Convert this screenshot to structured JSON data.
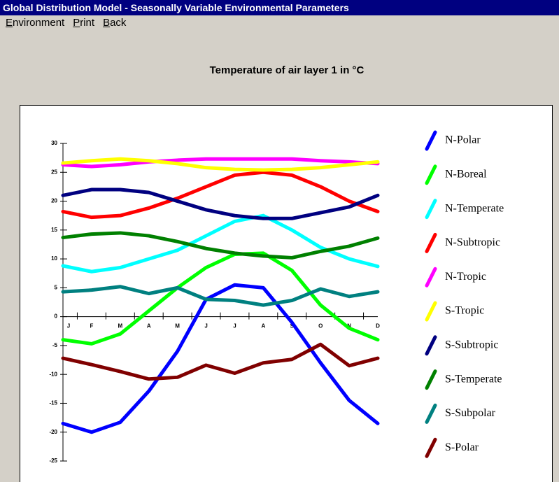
{
  "window": {
    "title": "Global Distribution Model - Seasonally Variable Environmental Parameters"
  },
  "menu": [
    "Environment",
    "Print",
    "Back"
  ],
  "chart_data": {
    "type": "line",
    "title": "Temperature of air layer 1 in °C",
    "categories": [
      "J",
      "F",
      "M",
      "A",
      "M",
      "J",
      "J",
      "A",
      "S",
      "O",
      "N",
      "D"
    ],
    "ylim": [
      -25,
      30
    ],
    "yticks": [
      30,
      25,
      20,
      15,
      10,
      5,
      0,
      -5,
      -10,
      -15,
      -20,
      -25
    ],
    "series": [
      {
        "name": "N-Polar",
        "color": "#0000ff",
        "values": [
          -18.5,
          -20,
          -18.3,
          -12.9,
          -6,
          3,
          5.5,
          5,
          -1,
          -8,
          -14.5,
          -18.5
        ]
      },
      {
        "name": "N-Boreal",
        "color": "#00ff00",
        "values": [
          -4,
          -4.7,
          -3,
          1,
          5,
          8.5,
          10.8,
          11,
          8,
          2,
          -2,
          -4
        ]
      },
      {
        "name": "N-Temperate",
        "color": "#00ffff",
        "values": [
          8.8,
          7.8,
          8.5,
          10,
          11.5,
          14,
          16.5,
          17.5,
          15,
          12,
          10,
          8.7
        ]
      },
      {
        "name": "N-Subtropic",
        "color": "#ff0000",
        "values": [
          18.2,
          17.2,
          17.5,
          18.8,
          20.5,
          22.5,
          24.5,
          25,
          24.5,
          22.5,
          20,
          18.2
        ]
      },
      {
        "name": "N-Tropic",
        "color": "#ff00ff",
        "values": [
          26.3,
          26,
          26.3,
          26.8,
          27.1,
          27.3,
          27.3,
          27.3,
          27.3,
          27,
          26.8,
          26.5
        ]
      },
      {
        "name": "S-Tropic",
        "color": "#ffff00",
        "values": [
          26.6,
          27,
          27.3,
          27,
          26.5,
          25.8,
          25.5,
          25.4,
          25.5,
          25.8,
          26.3,
          26.8
        ]
      },
      {
        "name": "S-Subtropic",
        "color": "#000080",
        "values": [
          21,
          22,
          22,
          21.5,
          20,
          18.5,
          17.5,
          17,
          17,
          18,
          19,
          21
        ]
      },
      {
        "name": "S-Temperate",
        "color": "#008000",
        "values": [
          13.7,
          14.3,
          14.5,
          14,
          13,
          11.8,
          11,
          10.5,
          10.2,
          11.3,
          12.2,
          13.6
        ]
      },
      {
        "name": "S-Subpolar",
        "color": "#008080",
        "values": [
          4.3,
          4.6,
          5.2,
          4,
          5,
          3,
          2.8,
          2,
          2.8,
          4.8,
          3.5,
          4.3
        ]
      },
      {
        "name": "S-Polar",
        "color": "#800000",
        "values": [
          -7.2,
          -8.3,
          -9.5,
          -10.8,
          -10.5,
          -8.4,
          -9.8,
          -8,
          -7.4,
          -4.8,
          -8.5,
          -7.2
        ]
      }
    ]
  }
}
